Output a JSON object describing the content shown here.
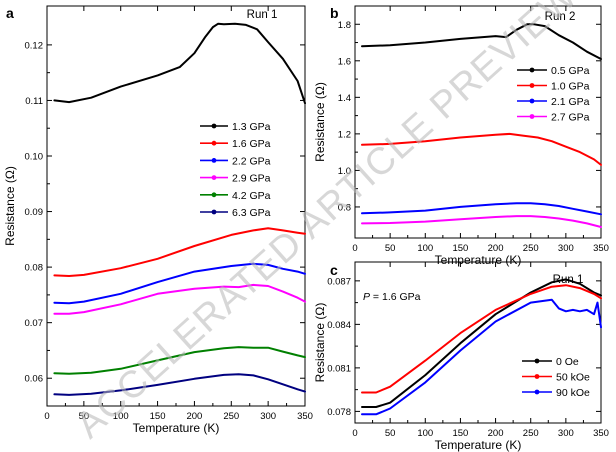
{
  "watermark": "ACCELERATED ARTICLE PREVIEW",
  "chart_data": [
    {
      "panel": "a",
      "type": "line",
      "run_label": "Run 1",
      "xlabel": "Temperature (K)",
      "ylabel": "Resistance (Ω)",
      "xlim": [
        0,
        350
      ],
      "ylim": [
        0.055,
        0.127
      ],
      "xticks": [
        0,
        50,
        100,
        150,
        200,
        250,
        300,
        350
      ],
      "yticks": [
        0.06,
        0.07,
        0.08,
        0.09,
        0.1,
        0.11,
        0.12
      ],
      "ytick_labels": [
        "0.06",
        "0.07",
        "0.08",
        "0.09",
        "0.10",
        "0.11",
        "0.12"
      ],
      "legend_position": "right",
      "series": [
        {
          "name": "1.3 GPa",
          "color": "#000000",
          "x": [
            10,
            30,
            60,
            100,
            150,
            180,
            200,
            215,
            225,
            232,
            240,
            255,
            270,
            285,
            300,
            320,
            340,
            350
          ],
          "y": [
            0.11,
            0.1097,
            0.1105,
            0.1125,
            0.1145,
            0.116,
            0.1185,
            0.1215,
            0.1232,
            0.1238,
            0.1237,
            0.1238,
            0.1236,
            0.1228,
            0.1205,
            0.1175,
            0.1135,
            0.1095
          ]
        },
        {
          "name": "1.6 GPa",
          "color": "#ff0000",
          "x": [
            10,
            30,
            50,
            100,
            150,
            200,
            250,
            280,
            300,
            320,
            340,
            350
          ],
          "y": [
            0.0785,
            0.0784,
            0.0786,
            0.0798,
            0.0815,
            0.0838,
            0.0858,
            0.0866,
            0.087,
            0.0866,
            0.0862,
            0.086
          ]
        },
        {
          "name": "2.2 GPa",
          "color": "#0000ff",
          "x": [
            10,
            30,
            50,
            100,
            150,
            200,
            250,
            280,
            300,
            320,
            340,
            350
          ],
          "y": [
            0.0736,
            0.0735,
            0.0738,
            0.0752,
            0.0773,
            0.0792,
            0.0802,
            0.0806,
            0.0804,
            0.0797,
            0.0792,
            0.0788
          ]
        },
        {
          "name": "2.9 GPa",
          "color": "#ff00ff",
          "x": [
            10,
            30,
            50,
            100,
            150,
            200,
            240,
            260,
            280,
            300,
            320,
            340,
            350
          ],
          "y": [
            0.0716,
            0.0716,
            0.0719,
            0.0733,
            0.0752,
            0.0761,
            0.0765,
            0.0764,
            0.0768,
            0.0766,
            0.0756,
            0.0745,
            0.0738
          ]
        },
        {
          "name": "4.2 GPa",
          "color": "#008000",
          "x": [
            10,
            30,
            60,
            100,
            150,
            200,
            240,
            260,
            280,
            300,
            320,
            340,
            350
          ],
          "y": [
            0.0609,
            0.0608,
            0.061,
            0.0617,
            0.0632,
            0.0647,
            0.0654,
            0.0656,
            0.0655,
            0.0655,
            0.0648,
            0.0641,
            0.0638
          ]
        },
        {
          "name": "6.3 GPa",
          "color": "#000080",
          "x": [
            10,
            30,
            60,
            100,
            150,
            200,
            240,
            260,
            280,
            300,
            320,
            340,
            350
          ],
          "y": [
            0.0571,
            0.057,
            0.0572,
            0.0578,
            0.0588,
            0.0599,
            0.0606,
            0.0607,
            0.0605,
            0.0598,
            0.0589,
            0.058,
            0.0576
          ]
        }
      ]
    },
    {
      "panel": "b",
      "type": "line",
      "run_label": "Run 2",
      "xlabel": "Temperature (K)",
      "ylabel": "Resistance (Ω)",
      "xlim": [
        0,
        350
      ],
      "ylim": [
        0.63,
        1.9
      ],
      "xticks": [
        0,
        50,
        100,
        150,
        200,
        250,
        300,
        350
      ],
      "yticks": [
        0.8,
        1.0,
        1.2,
        1.4,
        1.6,
        1.8
      ],
      "ytick_labels": [
        "0.8",
        "1.0",
        "1.2",
        "1.4",
        "1.6",
        "1.8"
      ],
      "legend_position": "right",
      "series": [
        {
          "name": "0.5 GPa",
          "color": "#000000",
          "x": [
            10,
            50,
            100,
            150,
            200,
            215,
            230,
            245,
            255,
            270,
            290,
            310,
            330,
            350
          ],
          "y": [
            1.68,
            1.685,
            1.7,
            1.72,
            1.735,
            1.73,
            1.77,
            1.8,
            1.8,
            1.79,
            1.74,
            1.7,
            1.65,
            1.61
          ]
        },
        {
          "name": "1.0 GPa",
          "color": "#ff0000",
          "x": [
            10,
            50,
            100,
            150,
            200,
            220,
            240,
            260,
            280,
            300,
            320,
            340,
            350
          ],
          "y": [
            1.14,
            1.145,
            1.16,
            1.18,
            1.195,
            1.2,
            1.19,
            1.18,
            1.16,
            1.13,
            1.1,
            1.06,
            1.03
          ]
        },
        {
          "name": "2.1 GPa",
          "color": "#0000ff",
          "x": [
            10,
            50,
            100,
            150,
            200,
            230,
            250,
            270,
            290,
            310,
            330,
            350
          ],
          "y": [
            0.765,
            0.77,
            0.78,
            0.8,
            0.815,
            0.82,
            0.82,
            0.815,
            0.805,
            0.79,
            0.775,
            0.76
          ]
        },
        {
          "name": "2.7 GPa",
          "color": "#ff00ff",
          "x": [
            10,
            50,
            100,
            150,
            200,
            230,
            250,
            270,
            290,
            310,
            330,
            350
          ],
          "y": [
            0.71,
            0.712,
            0.72,
            0.733,
            0.745,
            0.75,
            0.75,
            0.745,
            0.737,
            0.725,
            0.71,
            0.69
          ]
        }
      ]
    },
    {
      "panel": "c",
      "type": "line",
      "run_label": "Run 1",
      "annotation_symbol": "P",
      "annotation": " = 1.6 GPa",
      "xlabel": "Temperature (K)",
      "ylabel": "Resistance (Ω)",
      "xlim": [
        0,
        350
      ],
      "ylim": [
        0.0772,
        0.0883
      ],
      "xticks": [
        0,
        50,
        100,
        150,
        200,
        250,
        300,
        350
      ],
      "yticks": [
        0.078,
        0.081,
        0.084,
        0.087
      ],
      "ytick_labels": [
        "0.078",
        "0.081",
        "0.084",
        "0.087"
      ],
      "legend_position": "bottom-right",
      "series": [
        {
          "name": "0 Oe",
          "color": "#000000",
          "x": [
            10,
            30,
            50,
            100,
            150,
            200,
            250,
            280,
            300,
            320,
            340,
            350
          ],
          "y": [
            0.0783,
            0.0783,
            0.0786,
            0.0805,
            0.0827,
            0.0847,
            0.0862,
            0.0869,
            0.0871,
            0.0868,
            0.0862,
            0.086
          ]
        },
        {
          "name": "50 kOe",
          "color": "#ff0000",
          "x": [
            10,
            30,
            50,
            100,
            150,
            200,
            250,
            280,
            300,
            320,
            340,
            350
          ],
          "y": [
            0.0793,
            0.0793,
            0.0797,
            0.0815,
            0.0834,
            0.085,
            0.0861,
            0.0866,
            0.0867,
            0.0865,
            0.0861,
            0.0858
          ]
        },
        {
          "name": "90 kOe",
          "color": "#0000ff",
          "x": [
            10,
            30,
            50,
            100,
            150,
            200,
            250,
            280,
            290,
            300,
            310,
            320,
            330,
            340,
            345,
            350
          ],
          "y": [
            0.0778,
            0.0778,
            0.0782,
            0.08,
            0.0822,
            0.0842,
            0.0855,
            0.0857,
            0.0851,
            0.0849,
            0.085,
            0.0849,
            0.085,
            0.0847,
            0.0855,
            0.0838
          ]
        }
      ]
    }
  ]
}
